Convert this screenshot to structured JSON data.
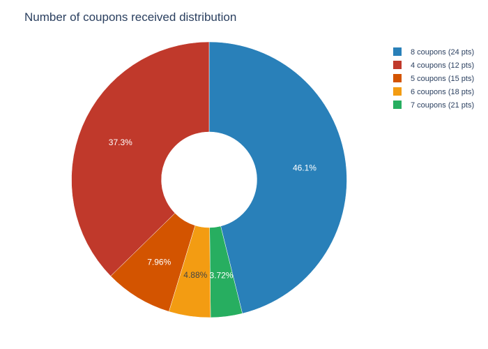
{
  "chart_data": {
    "type": "pie",
    "title": "Number of coupons received distribution",
    "hole": true,
    "direction": "clockwise",
    "legend_position": "top-right",
    "slices": [
      {
        "label": "8 coupons (24 pts)",
        "value": 46.1,
        "text": "46.1%",
        "color": "#2980b9",
        "text_color": "#ffffff"
      },
      {
        "label": "7 coupons (21 pts)",
        "value": 3.72,
        "text": "3.72%",
        "color": "#27ae60",
        "text_color": "#ffffff"
      },
      {
        "label": "6 coupons (18 pts)",
        "value": 4.88,
        "text": "4.88%",
        "color": "#f39c12",
        "text_color": "#444444"
      },
      {
        "label": "5 coupons (15 pts)",
        "value": 7.96,
        "text": "7.96%",
        "color": "#d35400",
        "text_color": "#ffffff"
      },
      {
        "label": "4 coupons (12 pts)",
        "value": 37.3,
        "text": "37.3%",
        "color": "#c0392b",
        "text_color": "#ffffff"
      }
    ],
    "legend_order": [
      "8 coupons (24 pts)",
      "4 coupons (12 pts)",
      "5 coupons (15 pts)",
      "6 coupons (18 pts)",
      "7 coupons (21 pts)"
    ]
  }
}
